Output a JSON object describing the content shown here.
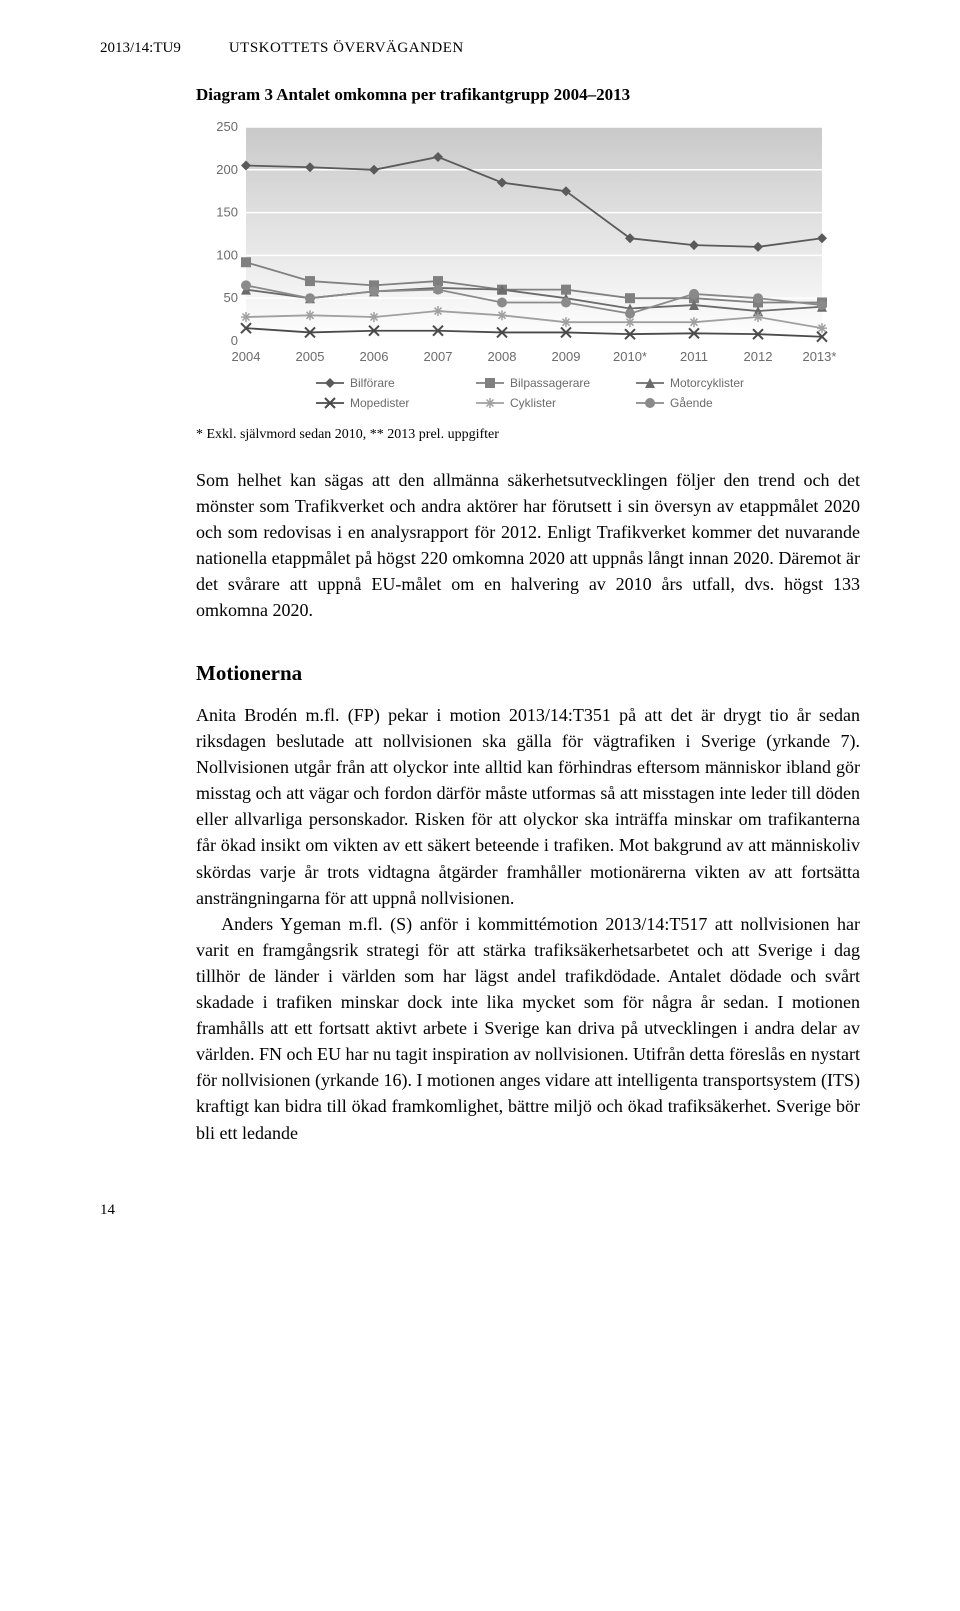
{
  "header": {
    "doc_id": "2013/14:TU9",
    "section": "UTSKOTTETS ÖVERVÄGANDEN"
  },
  "diagram": {
    "title": "Diagram 3 Antalet omkomna per trafikantgrupp 2004–2013",
    "caption": "* Exkl. självmord sedan 2010, ** 2013 prel. uppgifter",
    "type": "line",
    "x_labels": [
      "2004",
      "2005",
      "2006",
      "2007",
      "2008",
      "2009",
      "2010*",
      "2011",
      "2012",
      "2013**"
    ],
    "y_ticks": [
      0,
      50,
      100,
      150,
      200,
      250
    ],
    "ylim": [
      0,
      250
    ],
    "background_color": "#ffffff",
    "plot_bg_gradient_top": "#c9c9c9",
    "plot_bg_gradient_bottom": "#ffffff",
    "grid_color": "#ffffff",
    "axis_font_color": "#6b6b6b",
    "axis_fontsize": 13,
    "legend_fontsize": 12,
    "series": [
      {
        "name": "Bilförare",
        "marker": "diamond",
        "color": "#5a5a5a",
        "values": [
          205,
          203,
          200,
          215,
          185,
          175,
          120,
          112,
          110,
          120
        ]
      },
      {
        "name": "Bilpassagerare",
        "marker": "square",
        "color": "#808080",
        "values": [
          92,
          70,
          65,
          70,
          60,
          60,
          50,
          50,
          45,
          45
        ]
      },
      {
        "name": "Motorcyklister",
        "marker": "triangle",
        "color": "#6b6b6b",
        "values": [
          60,
          50,
          58,
          62,
          60,
          50,
          38,
          42,
          35,
          40
        ]
      },
      {
        "name": "Mopedister",
        "marker": "x",
        "color": "#4a4a4a",
        "values": [
          15,
          10,
          12,
          12,
          10,
          10,
          8,
          9,
          8,
          5
        ]
      },
      {
        "name": "Cyklister",
        "marker": "star",
        "color": "#a0a0a0",
        "values": [
          28,
          30,
          28,
          35,
          30,
          22,
          22,
          22,
          28,
          15
        ]
      },
      {
        "name": "Gående",
        "marker": "circle",
        "color": "#8a8a8a",
        "values": [
          65,
          50,
          58,
          60,
          45,
          45,
          32,
          55,
          50,
          42
        ]
      }
    ]
  },
  "body": {
    "para1": "Som helhet kan sägas att den allmänna säkerhetsutvecklingen följer den trend och det mönster som Trafikverket och andra aktörer har förutsett i sin översyn av etappmålet 2020 och som redovisas i en analysrapport för 2012. Enligt Trafikverket kommer det nuvarande nationella etappmålet på högst 220 omkomna 2020 att uppnås långt innan 2020. Däremot är det svårare att uppnå EU-målet om en halvering av 2010 års utfall, dvs. högst 133 omkomna 2020.",
    "subheading": "Motionerna",
    "para2": "Anita Brodén m.fl. (FP) pekar i motion 2013/14:T351 på att det är drygt tio år sedan riksdagen beslutade att nollvisionen ska gälla för vägtrafiken i Sverige (yrkande 7). Nollvisionen utgår från att olyckor inte alltid kan förhindras eftersom människor ibland gör misstag och att vägar och fordon därför måste utformas så att misstagen inte leder till döden eller allvarliga personskador. Risken för att olyckor ska inträffa minskar om trafikanterna får ökad insikt om vikten av ett säkert beteende i trafiken. Mot bakgrund av att människoliv skördas varje år trots vidtagna åtgärder framhåller motionärerna vikten av att fortsätta ansträngningarna för att uppnå nollvisionen.",
    "para3": "Anders Ygeman m.fl. (S) anför i kommittémotion 2013/14:T517 att nollvisionen har varit en framgångsrik strategi för att stärka trafiksäkerhetsarbetet och att Sverige i dag tillhör de länder i världen som har lägst andel trafikdödade. Antalet dödade och svårt skadade i trafiken minskar dock inte lika mycket som för några år sedan. I motionen framhålls att ett fortsatt aktivt arbete i Sverige kan driva på utvecklingen i andra delar av världen. FN och EU har nu tagit inspiration av nollvisionen. Utifrån detta föreslås en nystart för nollvisionen (yrkande 16). I motionen anges vidare att intelligenta transportsystem (ITS) kraftigt kan bidra till ökad framkomlighet, bättre miljö och ökad trafiksäkerhet. Sverige bör bli ett ledande"
  },
  "page_number": "14"
}
